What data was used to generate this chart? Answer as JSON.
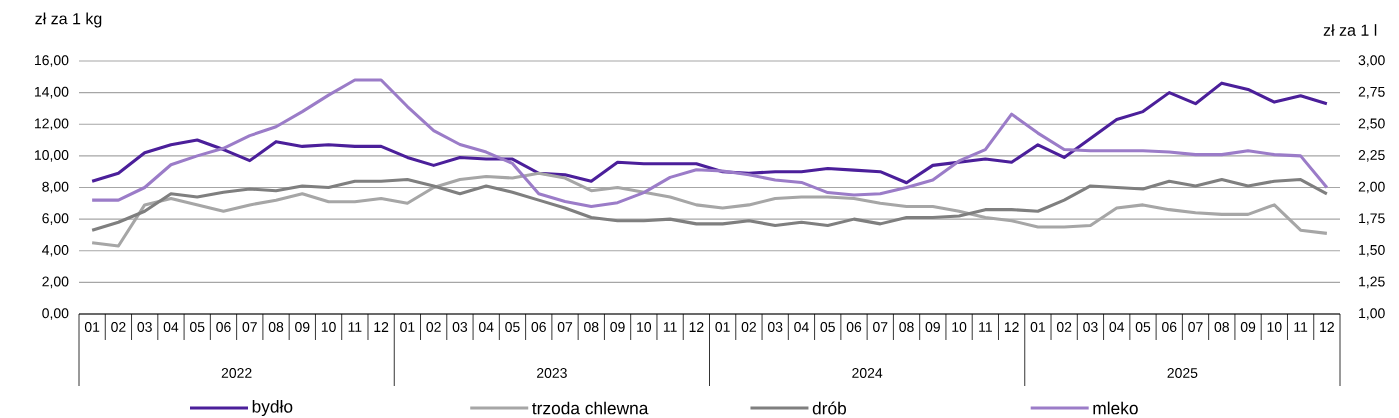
{
  "chart_data": {
    "type": "line",
    "ylabel": "zł za 1 kg",
    "y2label": "zł za 1 l",
    "categories": [
      "01",
      "02",
      "03",
      "04",
      "05",
      "06",
      "07",
      "08",
      "09",
      "10",
      "11",
      "12",
      "01",
      "02",
      "03",
      "04",
      "05",
      "06",
      "07",
      "08",
      "09",
      "10",
      "11",
      "12",
      "01",
      "02",
      "03",
      "04",
      "05",
      "06",
      "07",
      "08",
      "09",
      "10",
      "11",
      "12",
      "01",
      "02",
      "03",
      "04",
      "05",
      "06",
      "07",
      "08",
      "09",
      "10",
      "11",
      "12"
    ],
    "annotations": [
      "2022",
      "2023",
      "2024",
      "2025"
    ],
    "series": [
      {
        "name": "bydło",
        "color": "#4b1f9a",
        "values": [
          8.4,
          8.9,
          10.2,
          10.7,
          11.0,
          10.4,
          9.7,
          10.9,
          10.6,
          10.7,
          10.6,
          10.6,
          9.9,
          9.4,
          9.9,
          9.8,
          9.8,
          8.9,
          8.8,
          8.4,
          9.6,
          9.5,
          9.5,
          9.5,
          9.0,
          8.9,
          9.0,
          9.0,
          9.2,
          9.1,
          9.0,
          8.3,
          9.4,
          9.6,
          9.8,
          9.6,
          10.7,
          9.9,
          11.1,
          12.3,
          12.8,
          14.0,
          13.3,
          14.6,
          14.2,
          13.4,
          13.8,
          13.3
        ]
      },
      {
        "name": "trzoda chlewna",
        "color": "#a6a6a6",
        "values": [
          4.5,
          4.3,
          6.9,
          7.3,
          6.9,
          6.5,
          6.9,
          7.2,
          7.6,
          7.1,
          7.1,
          7.3,
          7.0,
          8.0,
          8.5,
          8.7,
          8.6,
          8.9,
          8.6,
          7.8,
          8.0,
          7.7,
          7.4,
          6.9,
          6.7,
          6.9,
          7.3,
          7.4,
          7.4,
          7.3,
          7.0,
          6.8,
          6.8,
          6.5,
          6.1,
          5.9,
          5.5,
          5.5,
          5.6,
          6.7,
          6.9,
          6.6,
          6.4,
          6.3,
          6.3,
          6.9,
          5.3,
          5.1
        ]
      },
      {
        "name": "drób",
        "color": "#7f7f7f",
        "values": [
          5.3,
          5.8,
          6.5,
          7.6,
          7.4,
          7.7,
          7.9,
          7.8,
          8.1,
          8.0,
          8.4,
          8.4,
          8.5,
          8.1,
          7.6,
          8.1,
          7.7,
          7.2,
          6.7,
          6.1,
          5.9,
          5.9,
          6.0,
          5.7,
          5.7,
          5.9,
          5.6,
          5.8,
          5.6,
          6.0,
          5.7,
          6.1,
          6.1,
          6.2,
          6.6,
          6.6,
          6.5,
          7.2,
          8.1,
          8.0,
          7.9,
          8.4,
          8.1,
          8.5,
          8.1,
          8.4,
          8.5,
          7.6
        ]
      },
      {
        "name": "mleko",
        "color": "#9b7cc8",
        "axis": "y2",
        "values": [
          1.9,
          1.9,
          2.0,
          2.18,
          2.25,
          2.31,
          2.41,
          2.48,
          2.6,
          2.73,
          2.85,
          2.85,
          2.64,
          2.45,
          2.34,
          2.28,
          2.19,
          1.95,
          1.89,
          1.85,
          1.88,
          1.96,
          2.08,
          2.14,
          2.13,
          2.1,
          2.06,
          2.04,
          1.96,
          1.94,
          1.95,
          2.0,
          2.06,
          2.21,
          2.3,
          2.58,
          2.43,
          2.3,
          2.29,
          2.29,
          2.29,
          2.28,
          2.26,
          2.26,
          2.29,
          2.26,
          2.25,
          2.0
        ]
      }
    ],
    "ylim": [
      0,
      16
    ],
    "yticks": [
      {
        "value": 0,
        "label": "0,00"
      },
      {
        "value": 2,
        "label": "2,00"
      },
      {
        "value": 4,
        "label": "4,00"
      },
      {
        "value": 6,
        "label": "6,00"
      },
      {
        "value": 8,
        "label": "8,00"
      },
      {
        "value": 10,
        "label": "10,00"
      },
      {
        "value": 12,
        "label": "12,00"
      },
      {
        "value": 14,
        "label": "14,00"
      },
      {
        "value": 16,
        "label": "16,00"
      }
    ],
    "y2lim": [
      1,
      3
    ],
    "y2ticks": [
      {
        "value": 1,
        "label": "1,00"
      },
      {
        "value": 1.25,
        "label": "1,25"
      },
      {
        "value": 1.5,
        "label": "1,50"
      },
      {
        "value": 1.75,
        "label": "1,75"
      },
      {
        "value": 2,
        "label": "2,00"
      },
      {
        "value": 2.25,
        "label": "2,25"
      },
      {
        "value": 2.5,
        "label": "2,50"
      },
      {
        "value": 2.75,
        "label": "2,75"
      },
      {
        "value": 3,
        "label": "3,00"
      }
    ],
    "grid": "y",
    "legend": "bottom",
    "line_style": "solid",
    "marker": "none"
  }
}
